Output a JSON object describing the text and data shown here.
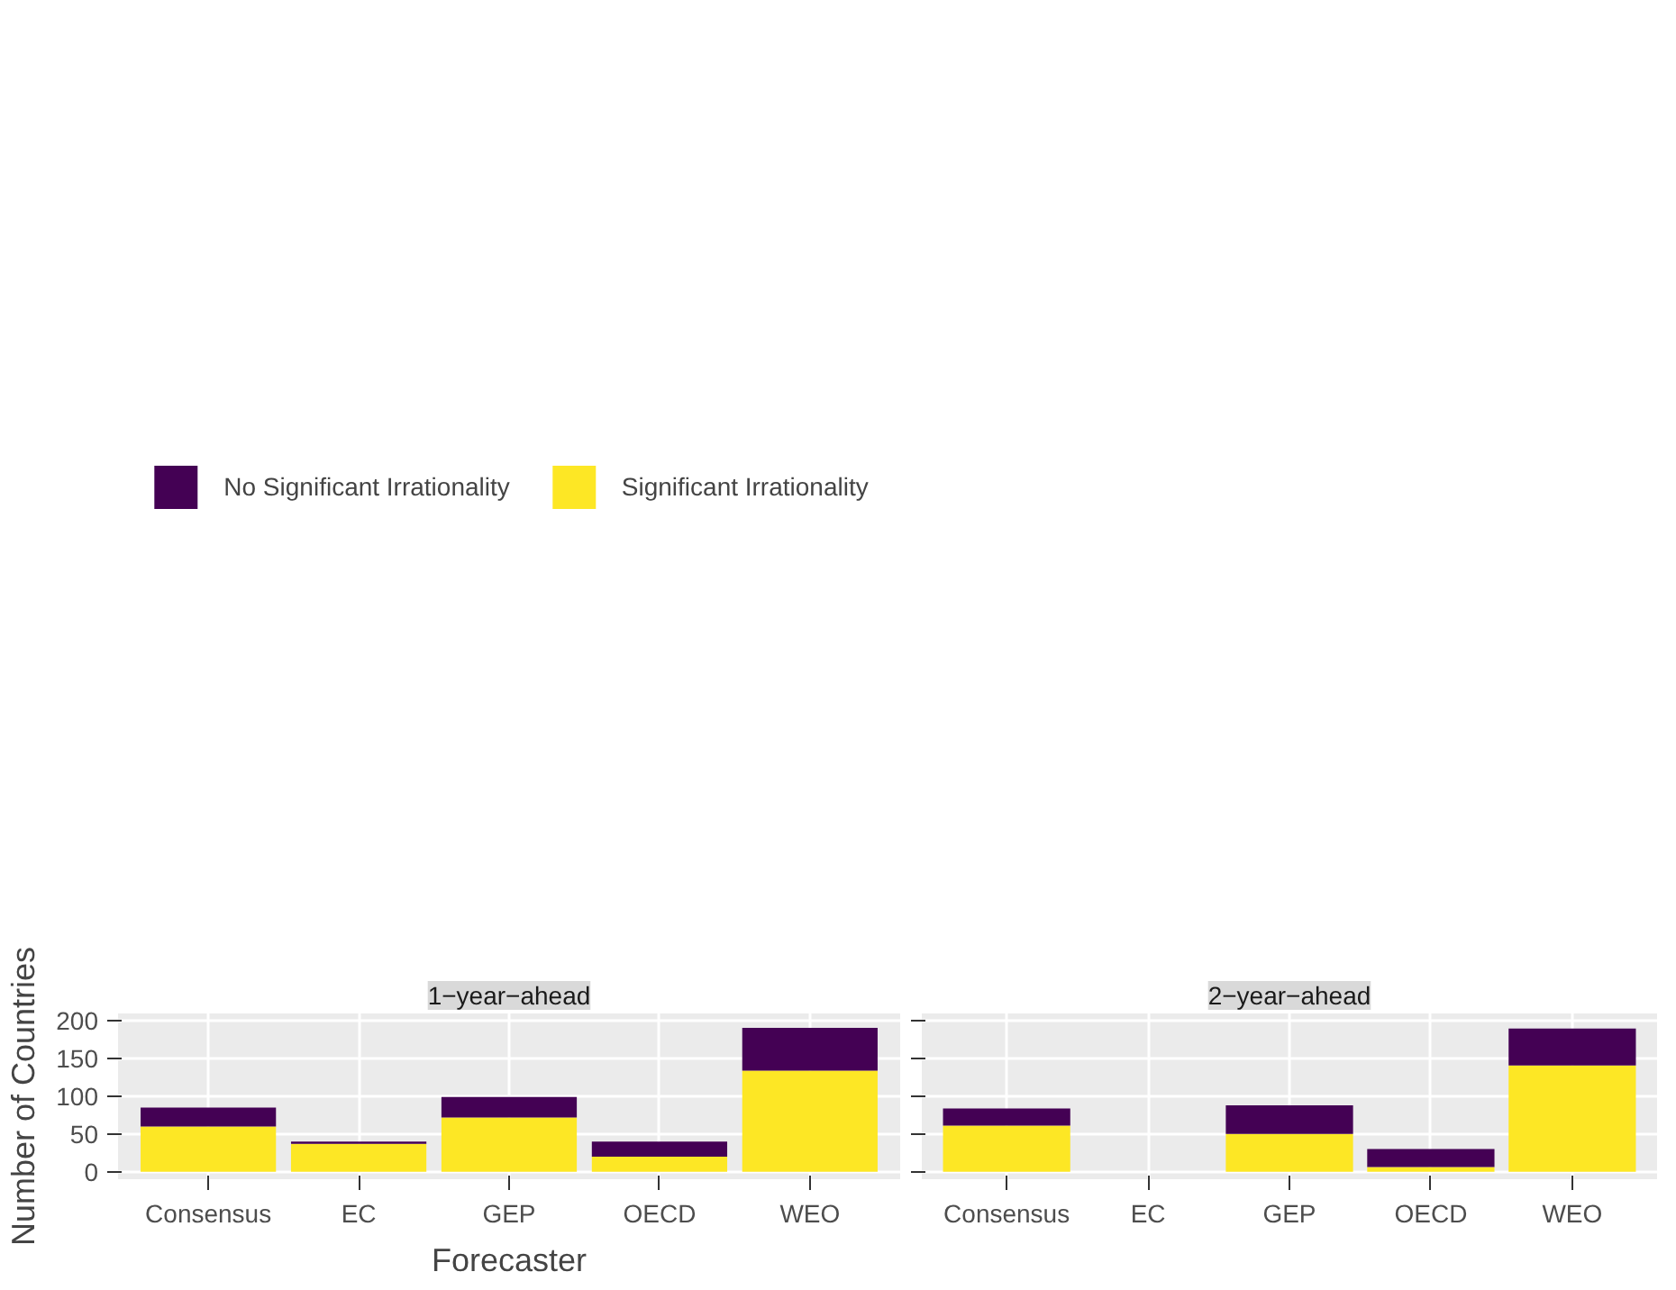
{
  "chart_data": [
    {
      "type": "bar",
      "title": "1−year−ahead",
      "xlabel": "Forecaster",
      "ylabel": "Number of Countries",
      "categories": [
        "Consensus",
        "EC",
        "GEP",
        "OECD",
        "WEO"
      ],
      "stacked": true,
      "ylim": [
        -10,
        210
      ],
      "yticks": [
        0,
        50,
        100,
        150,
        200
      ],
      "grid": true,
      "legend": "top",
      "series": [
        {
          "name": "Significant Irrationality",
          "color": "#fde725",
          "values": [
            60,
            37,
            72,
            20,
            134
          ]
        },
        {
          "name": "No Significant Irrationality",
          "color": "#440154",
          "values": [
            25,
            3,
            27,
            20,
            57
          ]
        }
      ]
    },
    {
      "type": "bar",
      "title": "2−year−ahead",
      "categories": [
        "Consensus",
        "EC",
        "GEP",
        "OECD",
        "WEO"
      ],
      "stacked": true,
      "ylim": [
        -10,
        210
      ],
      "yticks": [
        0,
        50,
        100,
        150,
        200
      ],
      "grid": true,
      "tick_labels": "x",
      "series": [
        {
          "color": "#fde725",
          "values": [
            61,
            null,
            50,
            6,
            141
          ]
        },
        {
          "color": "#440154",
          "values": [
            23,
            null,
            38,
            24,
            49
          ]
        }
      ]
    }
  ]
}
